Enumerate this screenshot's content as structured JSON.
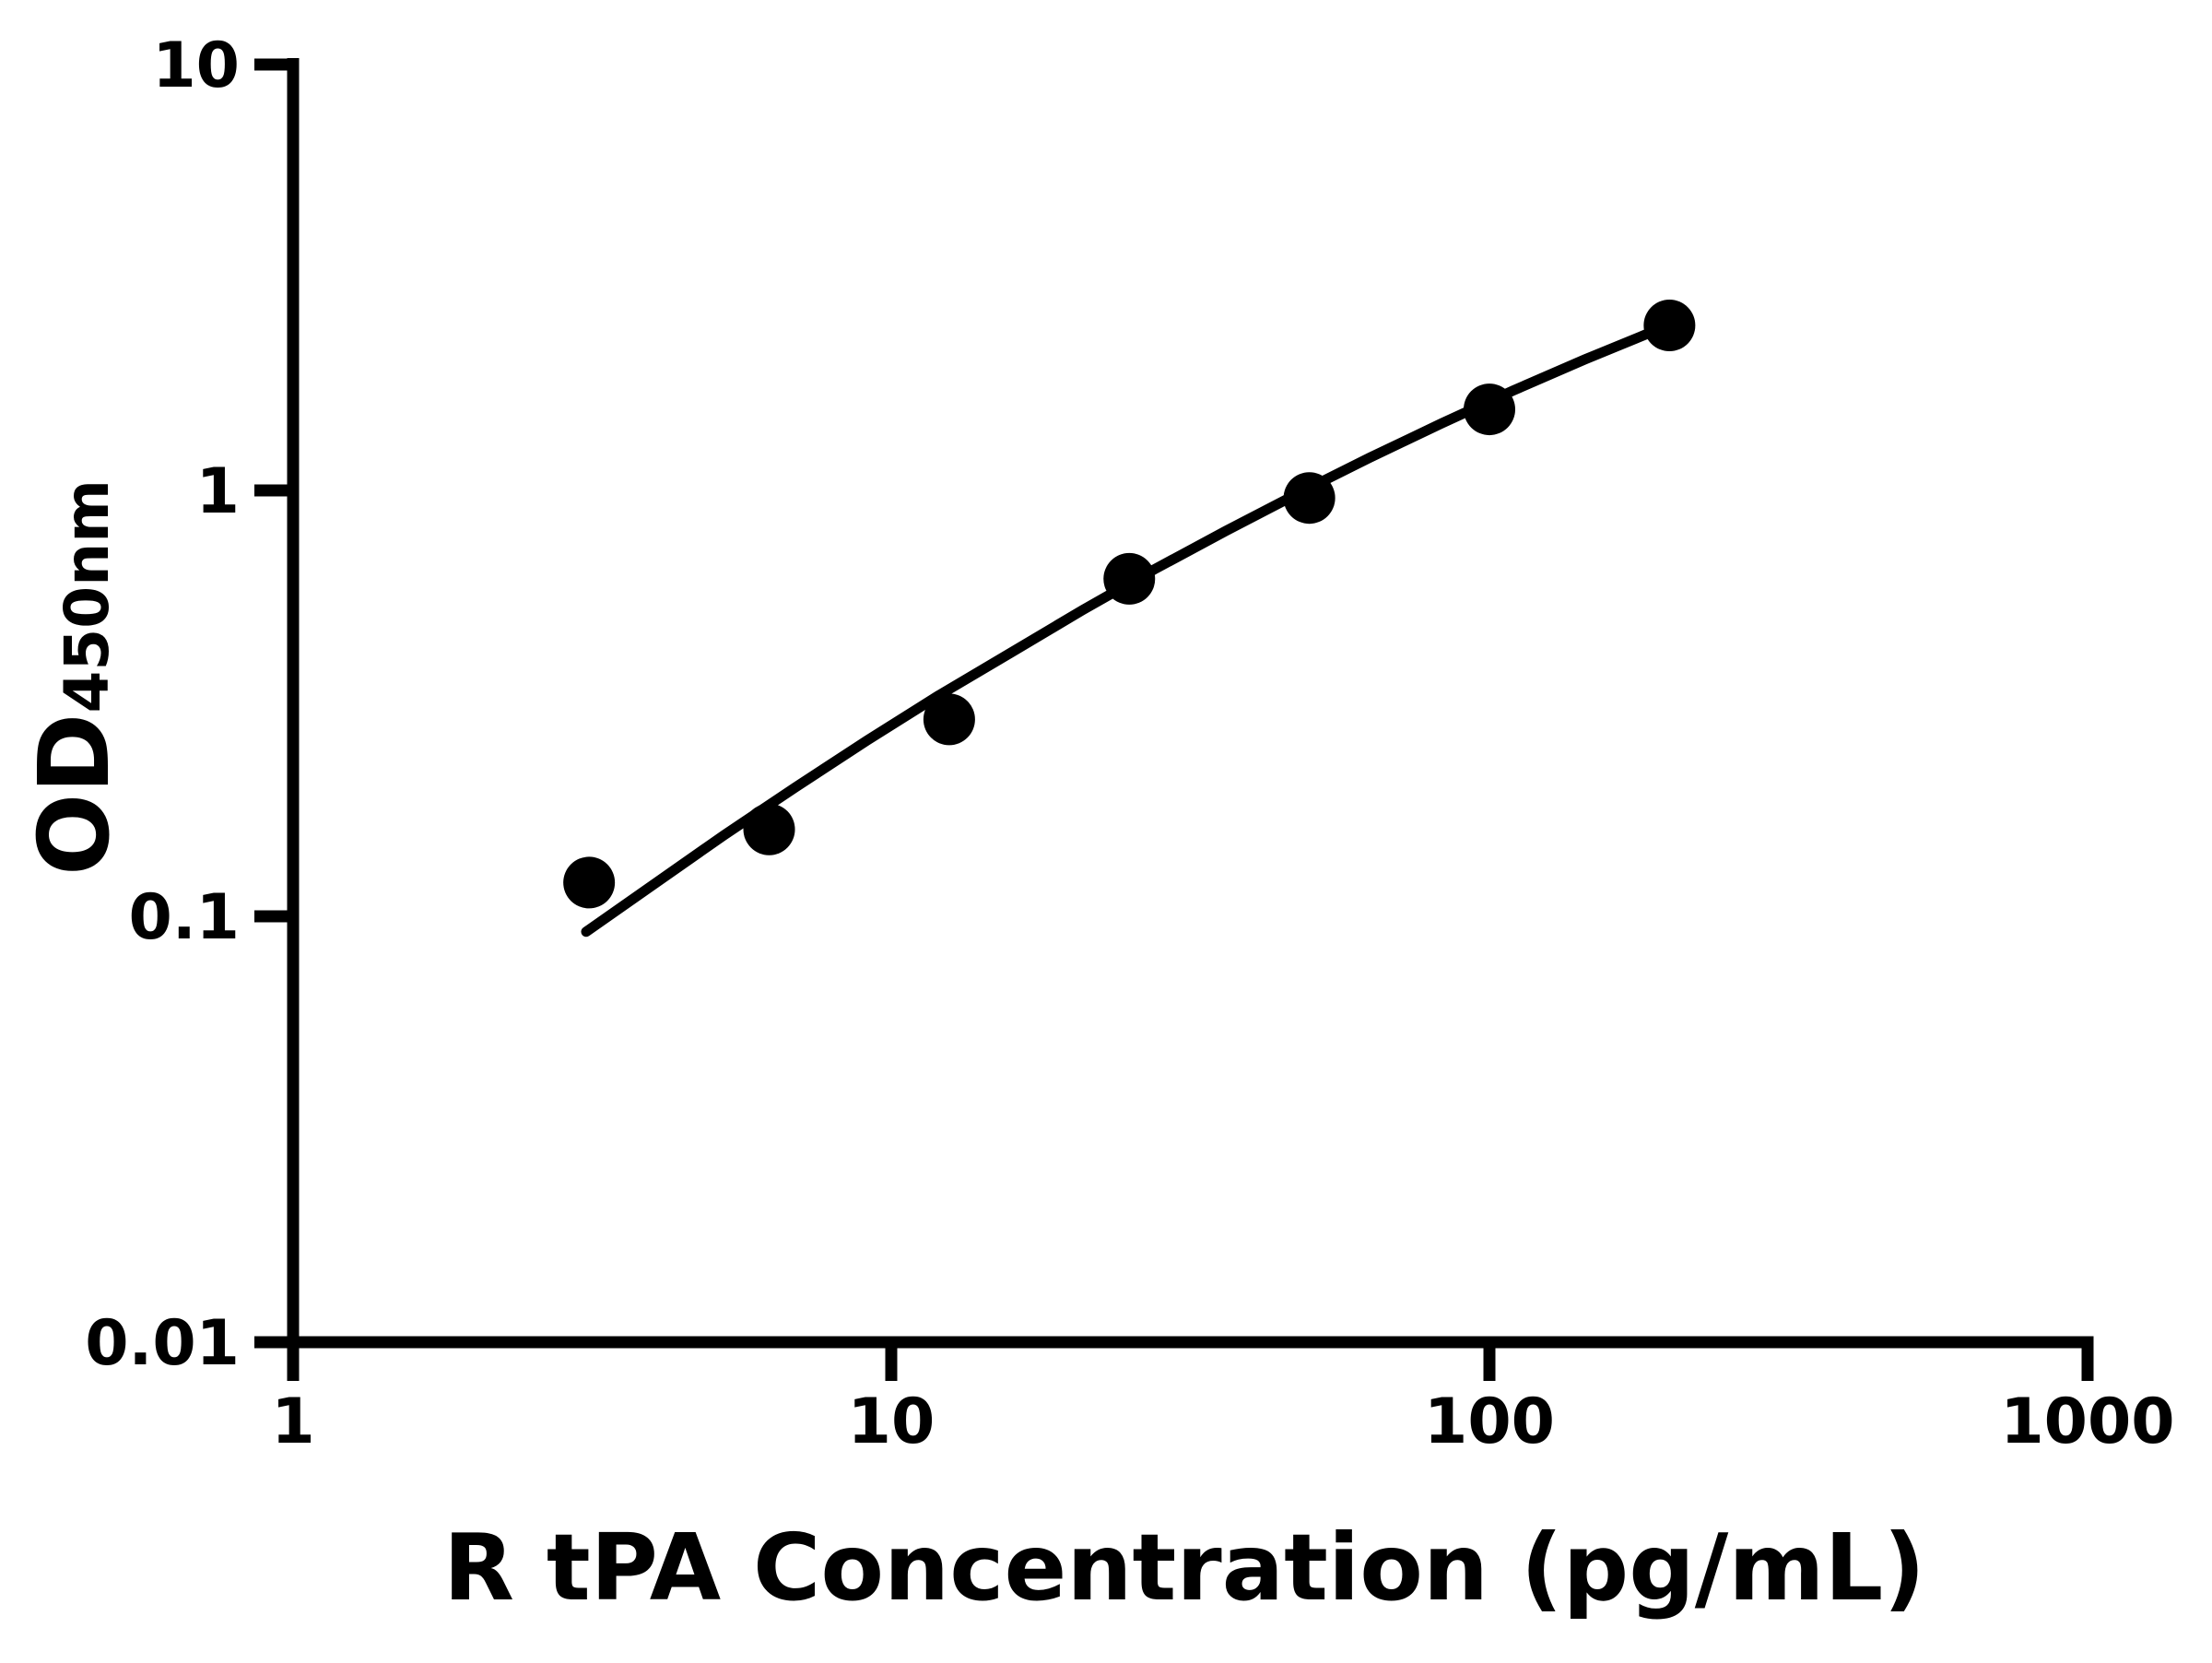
{
  "figure": {
    "background_color": "#ffffff",
    "ink_color": "#000000"
  },
  "chart_data": {
    "type": "scatter",
    "subtype": "elisa-standard-curve-with-fit",
    "title": "",
    "xlabel": "R tPA Concentration (pg/mL)",
    "ylabel_main": "OD",
    "ylabel_sub": "450nm",
    "x_scale": "log10",
    "y_scale": "log10",
    "xlim": [
      1,
      1000
    ],
    "ylim": [
      0.01,
      10
    ],
    "grid": false,
    "legend_position": "none",
    "x_ticks": {
      "values": [
        1,
        10,
        100,
        1000
      ],
      "labels": [
        "1",
        "10",
        "100",
        "1000"
      ]
    },
    "y_ticks": {
      "values": [
        10,
        1,
        0.1,
        0.01
      ],
      "labels": [
        "10",
        "1",
        "0.1",
        "0.01"
      ]
    },
    "series": [
      {
        "name": "standard-points",
        "marker": "filled-circle",
        "color": "#000000",
        "x": [
          3.125,
          6.25,
          12.5,
          25,
          50,
          100,
          200
        ],
        "y": [
          0.12,
          0.16,
          0.29,
          0.62,
          0.96,
          1.55,
          2.44
        ]
      }
    ],
    "fit_curve": {
      "name": "fitted-curve",
      "color": "#000000",
      "x": [
        3.09,
        3.98,
        5.25,
        6.92,
        9.12,
        12.0,
        15.9,
        20.9,
        27.5,
        36.3,
        47.9,
        63.1,
        83.2,
        109.6,
        144.5,
        198.2
      ],
      "y": [
        0.092,
        0.118,
        0.155,
        0.201,
        0.259,
        0.33,
        0.417,
        0.524,
        0.652,
        0.804,
        0.984,
        1.194,
        1.437,
        1.716,
        2.031,
        2.437
      ]
    }
  }
}
